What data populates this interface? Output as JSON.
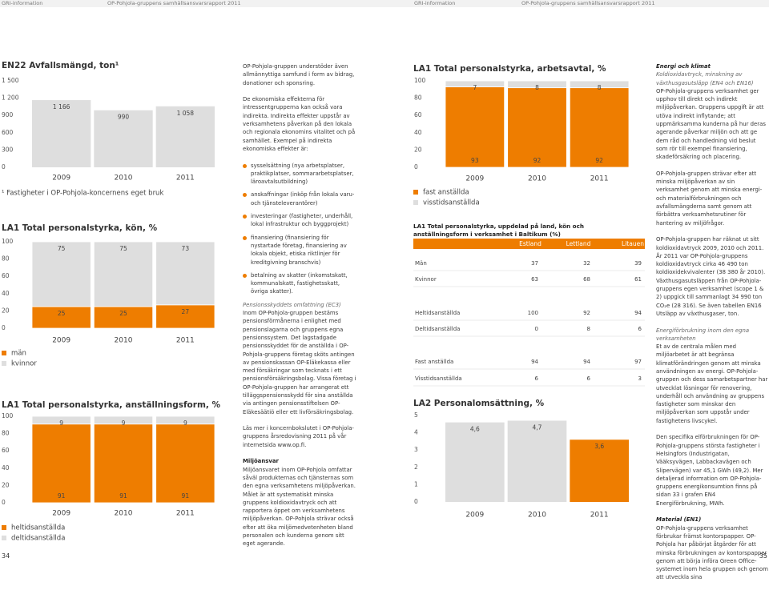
{
  "header": {
    "left": [
      "GRI-information",
      "OP-Pohjola-gruppens samhällsansvarsrapport 2011"
    ],
    "right": [
      "GRI-information",
      "OP-Pohjola-gruppens samhällsansvarsrapport 2011"
    ]
  },
  "chart_data": [
    {
      "type": "bar",
      "title": "EN22 Avfallsmängd, ton¹",
      "categories": [
        "2009",
        "2010",
        "2011"
      ],
      "values": [
        1166,
        990,
        1058
      ],
      "value_labels": [
        "1 166",
        "990",
        "1 058"
      ],
      "color": "#dedede",
      "ylim": [
        0,
        1500
      ],
      "yticks": [
        0,
        300,
        600,
        900,
        {
          "value": 1200,
          "label": "1 200"
        },
        {
          "value": 1500,
          "label": "1 500"
        }
      ],
      "footnote": "¹ Fastigheter i OP-Pohjola-koncernens eget bruk"
    },
    {
      "type": "stacked-bar",
      "title": "LA1 Total personalstyrka, kön, %",
      "categories": [
        "2009",
        "2010",
        "2011"
      ],
      "series": [
        {
          "name": "män",
          "color": "#ee7d00",
          "values": [
            25,
            25,
            27
          ]
        },
        {
          "name": "kvinnor",
          "color": "#dedede",
          "values": [
            75,
            75,
            73
          ]
        }
      ],
      "ylim": [
        0,
        100
      ],
      "yticks": [
        0,
        20,
        40,
        60,
        80,
        100
      ]
    },
    {
      "type": "stacked-bar",
      "title": "LA1 Total personalstyrka, anställningsform, %",
      "categories": [
        "2009",
        "2010",
        "2011"
      ],
      "series": [
        {
          "name": "heltidsanställda",
          "color": "#ee7d00",
          "values": [
            91,
            91,
            91
          ]
        },
        {
          "name": "deltidsanställda",
          "color": "#dedede",
          "values": [
            9,
            9,
            9
          ]
        }
      ],
      "ylim": [
        0,
        100
      ],
      "yticks": [
        0,
        20,
        40,
        60,
        80,
        100
      ]
    },
    {
      "type": "stacked-bar",
      "title": "LA1 Total personalstyrka, arbetsavtal, %",
      "categories": [
        "2009",
        "2010",
        "2011"
      ],
      "series": [
        {
          "name": "fast anställda",
          "color": "#ee7d00",
          "values": [
            93,
            92,
            92
          ]
        },
        {
          "name": "visstidsanställda",
          "color": "#dedede",
          "values": [
            7,
            8,
            8
          ]
        }
      ],
      "ylim": [
        0,
        100
      ],
      "yticks": [
        0,
        20,
        40,
        60,
        80,
        100
      ]
    },
    {
      "type": "bar",
      "title": "LA2 Personalomsättning, %",
      "categories": [
        "2009",
        "2010",
        "2011"
      ],
      "values": [
        4.6,
        4.7,
        3.6
      ],
      "value_labels": [
        "4,6",
        "4,7",
        "3,6"
      ],
      "colors": [
        "#dedede",
        "#dedede",
        "#ee7d00"
      ],
      "ylim": [
        0,
        5
      ],
      "yticks": [
        0,
        1,
        2,
        3,
        4,
        5
      ]
    }
  ],
  "table": {
    "title": "LA1 Total personalstyrka, uppdelad på land, kön och anställningsform i verksamhet i Baltikum (%)",
    "columns": [
      "Estland",
      "Lettland",
      "Litauen"
    ],
    "rows": [
      {
        "label": "Män",
        "values": [
          37,
          32,
          39
        ]
      },
      {
        "label": "Kvinnor",
        "values": [
          63,
          68,
          61
        ]
      },
      {
        "label": "Heltidsanställda",
        "values": [
          100,
          92,
          94
        ]
      },
      {
        "label": "Deltidsanställda",
        "values": [
          0,
          8,
          6
        ]
      },
      {
        "label": "Fast anställda",
        "values": [
          94,
          94,
          97
        ]
      },
      {
        "label": "Visstidsanställda",
        "values": [
          6,
          6,
          3
        ]
      }
    ]
  },
  "text_left": {
    "intro": "OP-Pohjola-gruppen understöder även allmännyttiga samfund i form av bidrag, donationer och sponsring.",
    "indirect": "De ekonomiska effekterna för intressentgrupperna kan också vara indirekta. Indirekta effekter uppstår av verksamhetens påverkan på den lokala och regionala ekonomins vitalitet och på samhället. Exempel på indirekta ekonomiska effekter är:",
    "bullets": [
      "sysselsättning (nya arbetsplatser, praktikplatser, sommararbetsplatser, läroavtalsutbildning)",
      "anskaffningar (inköp från lokala varu- och tjänsteleverantörer)",
      "investeringar (fastigheter, underhåll, lokal infrastruktur och byggprojekt)",
      "finansiering (finansiering för nystartade företag, finansiering av lokala objekt, etiska riktlinjer för kreditgivning branschvis)",
      "betalning av skatter (inkomstskatt, kommunalskatt, fastighetsskatt, övriga skatter)."
    ],
    "pension_heading": "Pensionsskyddets omfattning (EC3)",
    "pension_text": "Inom OP-Pohjola-gruppen bestäms pensionsförmånerna i enlighet med pensionslagarna och gruppens egna pensionssystem. Det lagstadgade pensionsskyddet för de anställda i OP-Pohjola-gruppens företag sköts antingen av pensionskassan OP-Eläkekassa eller med försäkringar som tecknats i ett pensionsförsäkringsbolag. Vissa företag i OP-Pohjola-gruppen har arrangerat ett tilläggspensionsskydd för sina anställda via antingen pensionsstiftelsen OP-Eläkesäätiö eller ett livförsäkringsbolag.",
    "read_more": "Läs mer i koncernbokslutet i OP-Pohjola-gruppens årsredovisning 2011 på vår internetsida www.op.fi.",
    "environment_heading": "Miljöansvar",
    "environment_text": "Miljöansvaret inom OP-Pohjola omfattar såväl produkternas och tjänsternas som den egna verksamhetens miljöpåverkan. Målet är att systematiskt minska gruppens koldioxidavtryck och att rapportera öppet om verksamhetens miljöpåverkan. OP-Pohjola strävar också efter att öka miljömedvetenheten bland personalen och kunderna genom sitt eget agerande."
  },
  "text_right": {
    "heading": "Energi och klimat",
    "subheading": "Koldioxidavtryck, minskning av växthusgasutsläpp (EN4 och EN16)",
    "p1": "OP-Pohjola-gruppens verksamhet ger upphov till direkt och indirekt miljöpåverkan. Gruppens uppgift är att utöva indirekt inflytande; att uppmärksamma kunderna på hur deras agerande påverkar miljön och att ge dem råd och handledning vid beslut som rör till exempel finansiering, skadeförsäkring och placering.",
    "p2": "OP-Pohjola-gruppen strävar efter att minska miljöpåverkan av sin verksamhet genom att minska energi- och materialförbrukningen och avfallsmängderna samt genom att förbättra verksamhetsrutiner för hantering av miljöfrågor.",
    "p3": "OP-Pohjola-gruppen har räknat ut sitt koldioxidavtryck 2009, 2010 och 2011. År 2011 var OP-Pohjola-gruppens koldioxidavtryck cirka 46 490 ton koldioxidekvivalenter (38 380 år 2010). Växthusgasutsläppen från OP-Pohjola-gruppens egen verksamhet (scope 1 & 2) uppgick till sammanlagt 34 990 ton CO₂e (28 316). Se även tabellen EN16 Utsläpp av växthusgaser, ton.",
    "energy_heading": "Energiförbrukning inom den egna verksamheten",
    "energy_text": "Et av de centrala målen med miljöarbetet är att begränsa klimatförändringen genom att minska användningen av energi. OP-Pohjola-gruppen och dess samarbetspartner har utvecklat lösningar för renovering, underhåll och användning av gruppens fastigheter som minskar den miljöpåverkan som uppstår under fastighetens livscykel.",
    "p4": "Den specifika elförbrukningen för OP-Pohjola-gruppens största fastigheter i Helsingfors (Industrigatan, Vääksyvägen, Labbackavägen och Slipervägen) var 45,1 GWh (49,2). Mer detaljerad information om OP-Pohjola-gruppens energikonsumtion finns på sidan 33 i grafen EN4 Energiförbrukning, MWh.",
    "material_heading": "Material (EN1)",
    "material_text": "OP-Pohjola-gruppens verksamhet förbrukar främst kontorspapper. OP-Pohjola har påbörjat åtgärder för att minska förbrukningen av kontorspapper genom att börja införa Green Office-systemet inom hela gruppen och genom att utveckla sina"
  },
  "page_numbers": [
    "34",
    "35"
  ]
}
